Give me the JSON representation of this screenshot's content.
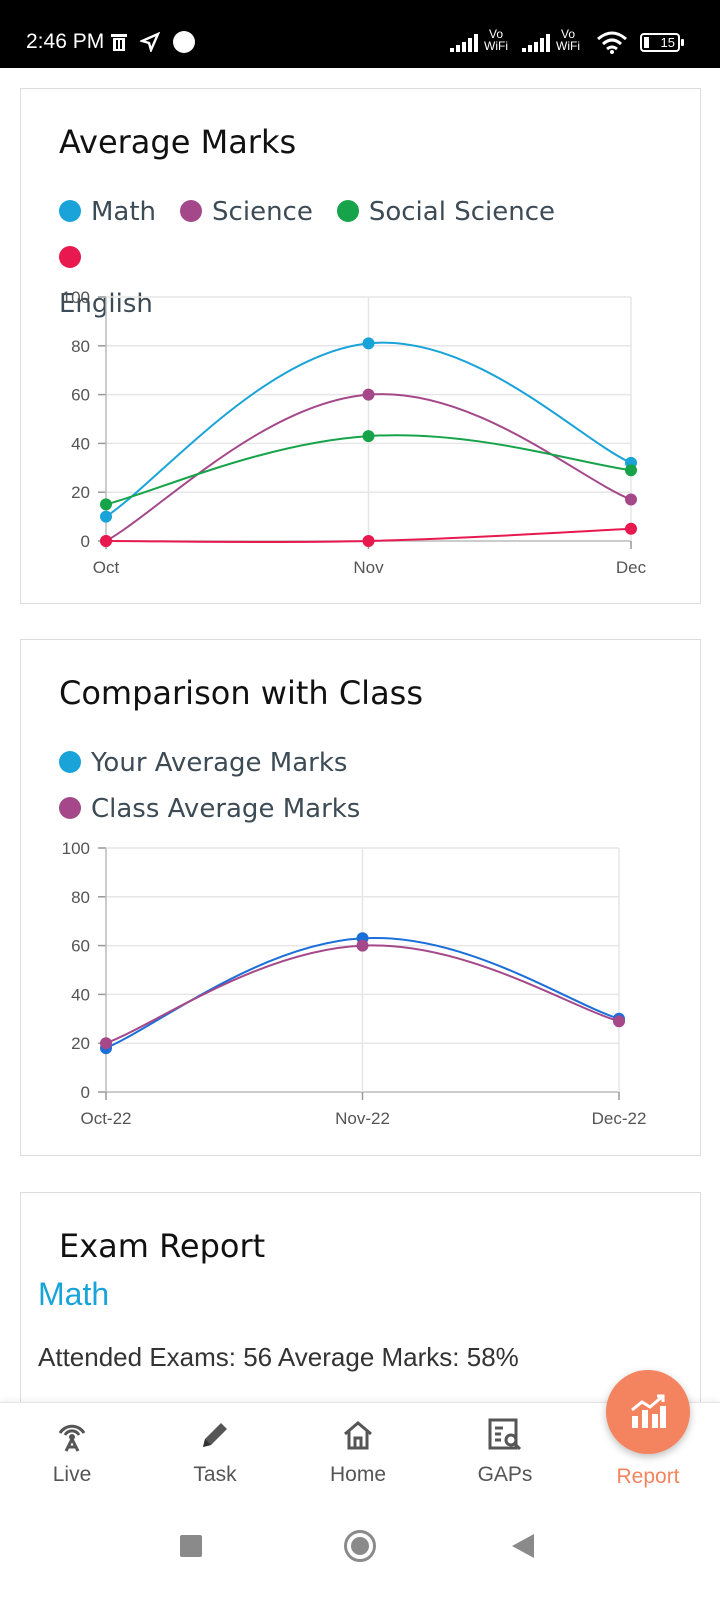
{
  "status_bar": {
    "time": "2:46 PM",
    "vowifi_1_top": "Vo",
    "vowifi_1_bottom": "WiFi",
    "vowifi_2_top": "Vo",
    "vowifi_2_bottom": "WiFi",
    "battery": "15"
  },
  "average_marks": {
    "title": "Average Marks",
    "legend": [
      "Math",
      "Science",
      "Social Science",
      "English"
    ],
    "chart_data": {
      "type": "line",
      "categories": [
        "Oct",
        "Nov",
        "Dec"
      ],
      "series": [
        {
          "name": "Math",
          "values": [
            10,
            81,
            32
          ],
          "color": "#1aa3d9"
        },
        {
          "name": "Science",
          "values": [
            0,
            60,
            17
          ],
          "color": "#a4488a"
        },
        {
          "name": "Social Science",
          "values": [
            15,
            43,
            29
          ],
          "color": "#16a34a"
        },
        {
          "name": "English",
          "values": [
            0,
            0,
            5
          ],
          "color": "#e8194f"
        }
      ],
      "ylim": [
        0,
        100
      ],
      "yticks": [
        "0",
        "20",
        "40",
        "60",
        "80",
        "100"
      ]
    }
  },
  "comparison": {
    "title": "Comparison with Class",
    "legend": [
      "Your Average Marks",
      "Class Average Marks"
    ],
    "chart_data": {
      "type": "line",
      "categories": [
        "Oct-22",
        "Nov-22",
        "Dec-22"
      ],
      "series": [
        {
          "name": "Your Average Marks",
          "values": [
            18,
            63,
            30
          ],
          "color": "#1a6fd9"
        },
        {
          "name": "Class Average Marks",
          "values": [
            20,
            60,
            29
          ],
          "color": "#a4488a"
        }
      ],
      "ylim": [
        0,
        100
      ],
      "yticks": [
        "0",
        "20",
        "40",
        "60",
        "80",
        "100"
      ]
    }
  },
  "exam_report": {
    "title": "Exam Report",
    "subject": "Math",
    "stats": "Attended Exams: 56   Average Marks: 58%"
  },
  "bottom_nav": {
    "items": [
      "Live",
      "Task",
      "Home",
      "GAPs",
      "Report"
    ]
  },
  "colors": {
    "accent": "#f4845f",
    "math": "#1aa3d9"
  }
}
